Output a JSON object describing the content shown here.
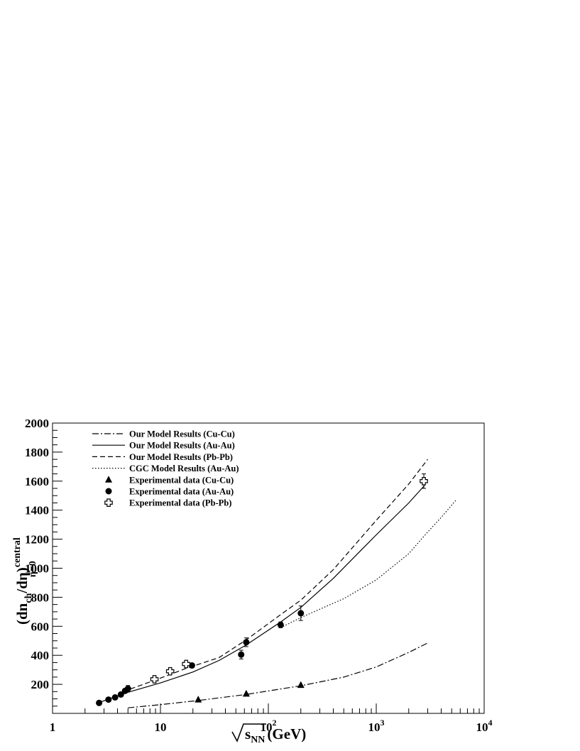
{
  "chart_data": {
    "type": "line",
    "xscale": "log",
    "xlim": [
      1,
      10000
    ],
    "ylim": [
      0,
      2000
    ],
    "xlabel": {
      "radical": "s",
      "sub": "NN",
      "unit": "(GeV)"
    },
    "ylabel": {
      "base": "(dn",
      "sub1": "ch",
      "mid": "/dη)",
      "sup": "central",
      "sub2": "η=0"
    },
    "x_ticks": [
      {
        "value": 1,
        "label": "1"
      },
      {
        "value": 10,
        "label": "10"
      },
      {
        "value": 100,
        "label": "10",
        "exp": "2"
      },
      {
        "value": 1000,
        "label": "10",
        "exp": "3"
      },
      {
        "value": 10000,
        "label": "10",
        "exp": "4"
      }
    ],
    "y_ticks": [
      {
        "value": 200,
        "label": "200"
      },
      {
        "value": 400,
        "label": "400"
      },
      {
        "value": 600,
        "label": "600"
      },
      {
        "value": 800,
        "label": "800"
      },
      {
        "value": 1000,
        "label": "1000"
      },
      {
        "value": 1200,
        "label": "1200"
      },
      {
        "value": 1400,
        "label": "1400"
      },
      {
        "value": 1600,
        "label": "1600"
      },
      {
        "value": 1800,
        "label": "1800"
      },
      {
        "value": 2000,
        "label": "2000"
      }
    ],
    "legend_position": "top-left",
    "series": [
      {
        "name": "Our Model Results (Cu-Cu)",
        "kind": "line",
        "style": "dashdot",
        "points": [
          [
            5,
            38
          ],
          [
            10,
            60
          ],
          [
            22,
            88
          ],
          [
            62,
            130
          ],
          [
            200,
            190
          ],
          [
            500,
            250
          ],
          [
            1000,
            320
          ],
          [
            2000,
            420
          ],
          [
            3000,
            485
          ]
        ]
      },
      {
        "name": "Our Model Results (Au-Au)",
        "kind": "line",
        "style": "solid",
        "points": [
          [
            2.7,
            75
          ],
          [
            4,
            120
          ],
          [
            5,
            145
          ],
          [
            10,
            210
          ],
          [
            20,
            285
          ],
          [
            35,
            365
          ],
          [
            62,
            470
          ],
          [
            130,
            630
          ],
          [
            200,
            730
          ],
          [
            400,
            930
          ],
          [
            1000,
            1230
          ],
          [
            2000,
            1450
          ],
          [
            2800,
            1570
          ]
        ]
      },
      {
        "name": "Our Model Results (Pb-Pb)",
        "kind": "line",
        "style": "dashed",
        "points": [
          [
            4.5,
            150
          ],
          [
            9,
            230
          ],
          [
            17.3,
            310
          ],
          [
            35,
            385
          ],
          [
            62,
            505
          ],
          [
            130,
            680
          ],
          [
            200,
            780
          ],
          [
            400,
            990
          ],
          [
            1000,
            1330
          ],
          [
            2000,
            1580
          ],
          [
            3000,
            1750
          ]
        ]
      },
      {
        "name": "CGC Model Results (Au-Au)",
        "kind": "line",
        "style": "dotted",
        "points": [
          [
            130,
            590
          ],
          [
            200,
            660
          ],
          [
            500,
            790
          ],
          [
            1000,
            920
          ],
          [
            2000,
            1100
          ],
          [
            3000,
            1250
          ],
          [
            4000,
            1350
          ],
          [
            5500,
            1470
          ]
        ]
      },
      {
        "name": "Experimental data (Cu-Cu)",
        "kind": "marker",
        "marker": "triangle",
        "points": [
          [
            22.4,
            95
          ],
          [
            62.4,
            135
          ],
          [
            200,
            195
          ]
        ],
        "errors": [
          0,
          0,
          0
        ]
      },
      {
        "name": "Experimental data (Au-Au)",
        "kind": "marker",
        "marker": "circle",
        "points": [
          [
            2.7,
            72
          ],
          [
            3.3,
            95
          ],
          [
            3.8,
            110
          ],
          [
            4.3,
            130
          ],
          [
            4.7,
            155
          ],
          [
            5,
            170
          ],
          [
            19.6,
            330
          ],
          [
            56,
            405
          ],
          [
            62.4,
            490
          ],
          [
            130,
            610
          ],
          [
            200,
            690
          ]
        ],
        "errors": [
          0,
          0,
          0,
          0,
          0,
          22,
          15,
          30,
          30,
          20,
          50
        ]
      },
      {
        "name": "Experimental data (Pb-Pb)",
        "kind": "marker",
        "marker": "cross",
        "points": [
          [
            8.8,
            235
          ],
          [
            12.3,
            290
          ],
          [
            17.3,
            340
          ],
          [
            2760,
            1600
          ]
        ],
        "errors": [
          0,
          0,
          0,
          50
        ]
      }
    ]
  }
}
